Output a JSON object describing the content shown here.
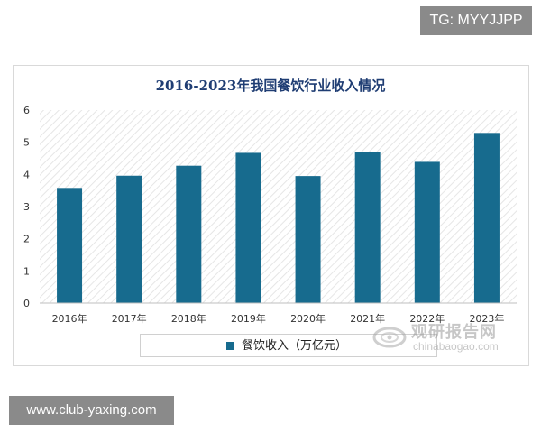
{
  "overlays": {
    "top_tag": "TG: MYYJJPP",
    "bottom_site": "www.club-yaxing.com"
  },
  "watermark": {
    "cn_text": "观研报告网",
    "en_text": "chinabaogao.com"
  },
  "chart_data": {
    "type": "bar",
    "title": "2016-2023年我国餐饮行业收入情况",
    "categories": [
      "2016年",
      "2017年",
      "2018年",
      "2019年",
      "2020年",
      "2021年",
      "2022年",
      "2023年"
    ],
    "series": [
      {
        "name": "餐饮收入（万亿元）",
        "values": [
          3.58,
          3.96,
          4.27,
          4.67,
          3.95,
          4.69,
          4.39,
          5.29
        ],
        "color": "#176b8e"
      }
    ],
    "ylim": [
      0,
      6
    ],
    "yticks": [
      "0",
      "1",
      "2",
      "3",
      "4",
      "5",
      "6"
    ],
    "xlabel": "",
    "ylabel": "",
    "grid": false,
    "legend_position": "bottom",
    "title_color": "#1f3d73"
  }
}
